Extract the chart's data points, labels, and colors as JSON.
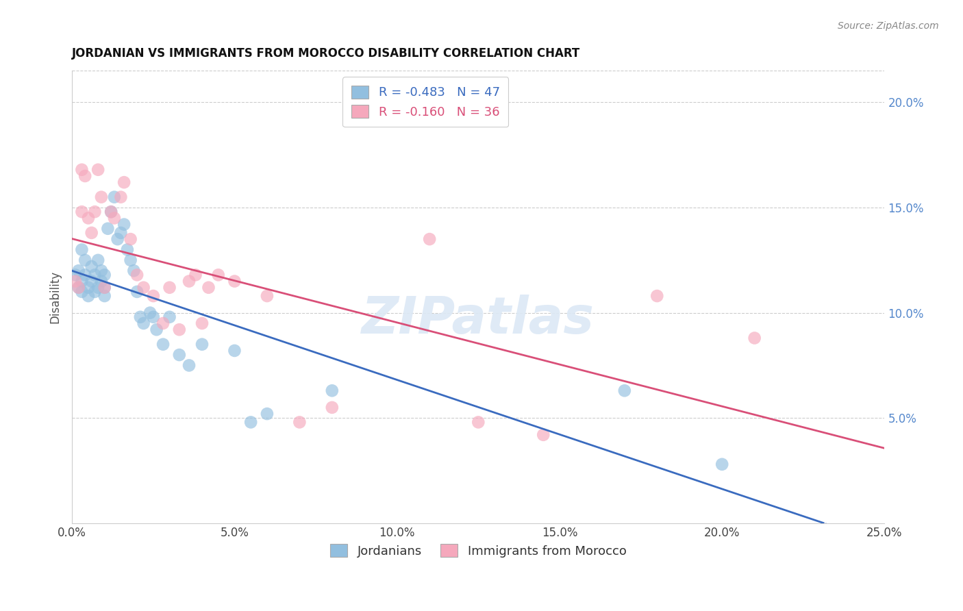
{
  "title": "JORDANIAN VS IMMIGRANTS FROM MOROCCO DISABILITY CORRELATION CHART",
  "source": "Source: ZipAtlas.com",
  "ylabel": "Disability",
  "xlabel_ticks": [
    "0.0%",
    "5.0%",
    "10.0%",
    "15.0%",
    "20.0%",
    "25.0%"
  ],
  "xlabel_vals": [
    0.0,
    0.05,
    0.1,
    0.15,
    0.2,
    0.25
  ],
  "ylabel_ticks": [
    "5.0%",
    "10.0%",
    "15.0%",
    "20.0%"
  ],
  "ylabel_vals": [
    0.05,
    0.1,
    0.15,
    0.2
  ],
  "xlim": [
    0.0,
    0.25
  ],
  "ylim": [
    0.0,
    0.215
  ],
  "blue_R": -0.483,
  "blue_N": 47,
  "pink_R": -0.16,
  "pink_N": 36,
  "blue_color": "#92bfdf",
  "pink_color": "#f5a8bc",
  "blue_line_color": "#3a6bbf",
  "pink_line_color": "#d94f78",
  "watermark": "ZIPatlas",
  "blue_x": [
    0.001,
    0.002,
    0.002,
    0.003,
    0.003,
    0.003,
    0.004,
    0.004,
    0.005,
    0.005,
    0.006,
    0.006,
    0.007,
    0.007,
    0.008,
    0.008,
    0.009,
    0.009,
    0.01,
    0.01,
    0.01,
    0.011,
    0.012,
    0.013,
    0.014,
    0.015,
    0.016,
    0.017,
    0.018,
    0.019,
    0.02,
    0.021,
    0.022,
    0.024,
    0.025,
    0.026,
    0.028,
    0.03,
    0.033,
    0.036,
    0.04,
    0.05,
    0.055,
    0.06,
    0.08,
    0.17,
    0.2
  ],
  "blue_y": [
    0.118,
    0.112,
    0.12,
    0.115,
    0.11,
    0.13,
    0.118,
    0.125,
    0.112,
    0.108,
    0.115,
    0.122,
    0.118,
    0.11,
    0.125,
    0.112,
    0.12,
    0.115,
    0.118,
    0.112,
    0.108,
    0.14,
    0.148,
    0.155,
    0.135,
    0.138,
    0.142,
    0.13,
    0.125,
    0.12,
    0.11,
    0.098,
    0.095,
    0.1,
    0.098,
    0.092,
    0.085,
    0.098,
    0.08,
    0.075,
    0.085,
    0.082,
    0.048,
    0.052,
    0.063,
    0.063,
    0.028
  ],
  "pink_x": [
    0.001,
    0.002,
    0.003,
    0.003,
    0.004,
    0.005,
    0.006,
    0.007,
    0.008,
    0.009,
    0.01,
    0.012,
    0.013,
    0.015,
    0.016,
    0.018,
    0.02,
    0.022,
    0.025,
    0.028,
    0.03,
    0.033,
    0.036,
    0.038,
    0.04,
    0.042,
    0.045,
    0.05,
    0.06,
    0.07,
    0.08,
    0.11,
    0.125,
    0.145,
    0.18,
    0.21
  ],
  "pink_y": [
    0.115,
    0.112,
    0.148,
    0.168,
    0.165,
    0.145,
    0.138,
    0.148,
    0.168,
    0.155,
    0.112,
    0.148,
    0.145,
    0.155,
    0.162,
    0.135,
    0.118,
    0.112,
    0.108,
    0.095,
    0.112,
    0.092,
    0.115,
    0.118,
    0.095,
    0.112,
    0.118,
    0.115,
    0.108,
    0.048,
    0.055,
    0.135,
    0.048,
    0.042,
    0.108,
    0.088
  ],
  "background_color": "#ffffff",
  "grid_color": "#cccccc",
  "right_ytick_color": "#5588cc"
}
